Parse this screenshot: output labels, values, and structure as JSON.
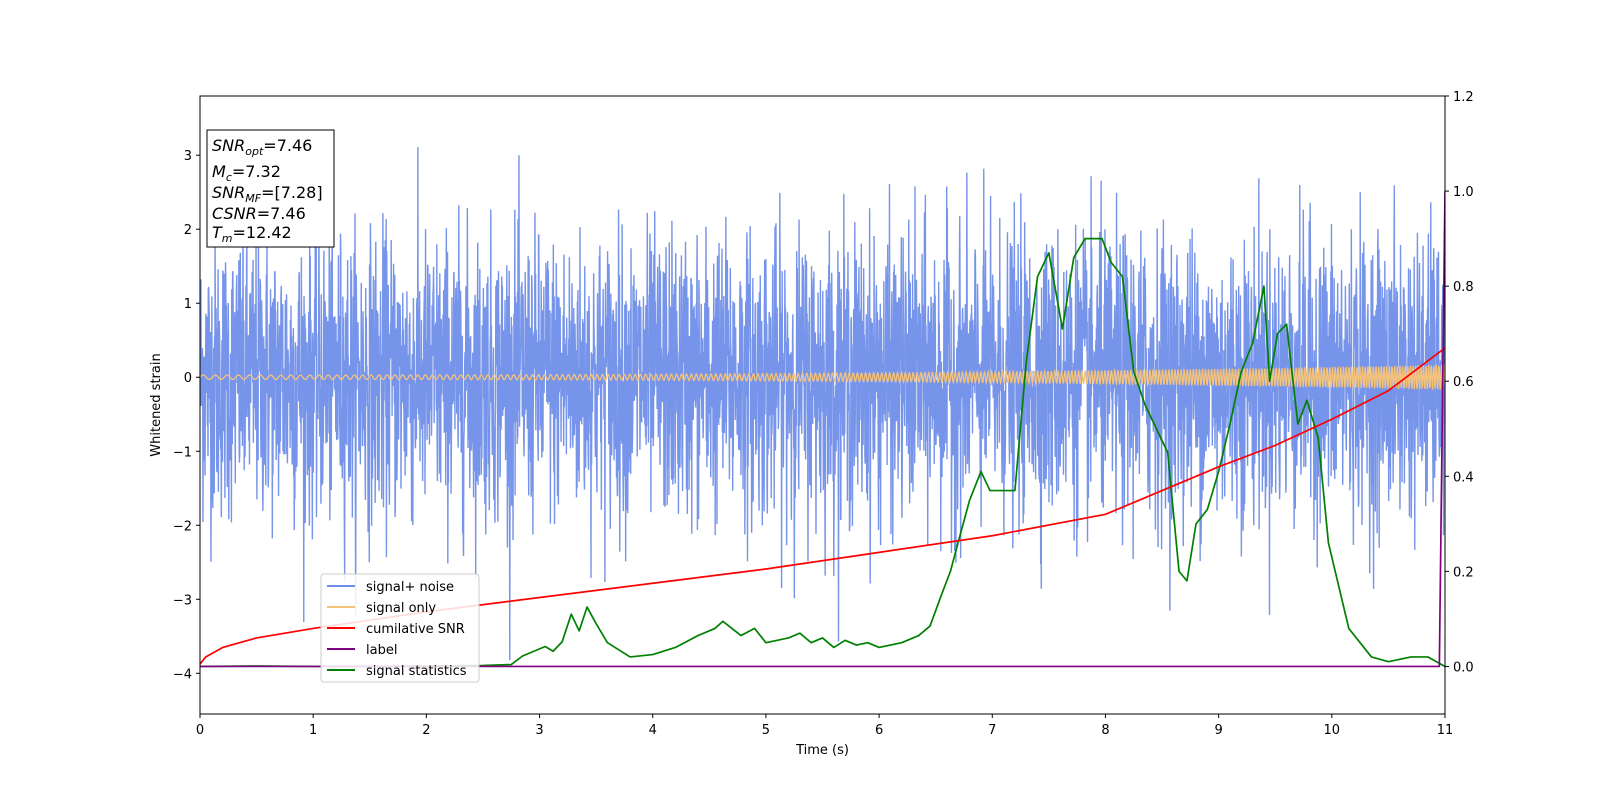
{
  "chart_data": {
    "type": "line",
    "xlabel": "Time (s)",
    "ylabel_left": "Whitened strain",
    "xlim": [
      0,
      11
    ],
    "ylim_left": [
      -4.55,
      3.8
    ],
    "ylim_right": [
      -0.1,
      1.2
    ],
    "x_ticks": [
      0,
      1,
      2,
      3,
      4,
      5,
      6,
      7,
      8,
      9,
      10,
      11
    ],
    "y_ticks_left": [
      -4,
      -3,
      -2,
      -1,
      0,
      1,
      2,
      3
    ],
    "y_ticks_right": [
      0.0,
      0.2,
      0.4,
      0.6,
      0.8,
      1.0,
      1.2
    ],
    "grid": false,
    "legend_position": "lower-left",
    "stats_box": {
      "snr_opt": {
        "base": "SNR",
        "sub": "opt",
        "value": "=7.46"
      },
      "mc": {
        "base": "M",
        "sub": "c",
        "value": "=7.32"
      },
      "snr_mf": {
        "base": "SNR",
        "sub": "MF",
        "value": "=[7.28]"
      },
      "csnr": {
        "base": "CSNR",
        "sub": "",
        "value": "=7.46"
      },
      "tm": {
        "base": "T",
        "sub": "m",
        "value": "=12.42"
      }
    },
    "series": [
      {
        "key": "noise",
        "name": "signal+ noise",
        "axis": "left",
        "color": "#6f8ee8",
        "note": "white noise around 0, approx. amplitude sigma 1.0, extremes about -4.2 to 3.45"
      },
      {
        "key": "signal",
        "name": "signal only",
        "axis": "left",
        "color": "#f5c27a",
        "amplitude_start": 0.03,
        "amplitude_end": 0.17
      },
      {
        "key": "cumsnr",
        "name": "cumilative SNR",
        "axis": "right",
        "color": "#ff0000",
        "x": [
          0,
          0.05,
          0.2,
          0.5,
          1,
          2,
          3,
          4,
          5,
          6,
          7,
          8,
          9,
          9.5,
          10,
          10.5,
          11
        ],
        "y": [
          0.005,
          0.02,
          0.04,
          0.06,
          0.08,
          0.115,
          0.145,
          0.175,
          0.205,
          0.24,
          0.275,
          0.32,
          0.42,
          0.465,
          0.52,
          0.58,
          0.67
        ]
      },
      {
        "key": "label",
        "name": "label",
        "axis": "right",
        "color": "#800080",
        "x": [
          0,
          10.95,
          11
        ],
        "y": [
          0.0,
          0.0,
          1.0
        ]
      },
      {
        "key": "stats",
        "name": "signal statistics",
        "axis": "right",
        "color": "#008000",
        "x": [
          0,
          0.5,
          1,
          1.5,
          2,
          2.5,
          2.75,
          2.85,
          2.95,
          3.05,
          3.12,
          3.2,
          3.28,
          3.35,
          3.42,
          3.5,
          3.6,
          3.7,
          3.8,
          4.0,
          4.2,
          4.4,
          4.55,
          4.62,
          4.7,
          4.78,
          4.9,
          5.0,
          5.1,
          5.2,
          5.3,
          5.4,
          5.5,
          5.6,
          5.7,
          5.8,
          5.9,
          6.0,
          6.2,
          6.35,
          6.45,
          6.55,
          6.63,
          6.72,
          6.8,
          6.9,
          6.98,
          7.1,
          7.2,
          7.3,
          7.4,
          7.5,
          7.62,
          7.72,
          7.82,
          7.97,
          8.05,
          8.15,
          8.25,
          8.35,
          8.45,
          8.55,
          8.65,
          8.72,
          8.8,
          8.9,
          9.0,
          9.1,
          9.2,
          9.3,
          9.4,
          9.45,
          9.52,
          9.6,
          9.7,
          9.78,
          9.88,
          9.97,
          10.05,
          10.15,
          10.25,
          10.35,
          10.5,
          10.7,
          10.85,
          11.0
        ],
        "y": [
          0.0,
          0.001,
          0.0,
          0.0,
          0.001,
          0.002,
          0.004,
          0.022,
          0.032,
          0.042,
          0.032,
          0.052,
          0.11,
          0.075,
          0.125,
          0.09,
          0.05,
          0.035,
          0.02,
          0.025,
          0.04,
          0.065,
          0.08,
          0.095,
          0.08,
          0.065,
          0.08,
          0.05,
          0.055,
          0.06,
          0.07,
          0.05,
          0.06,
          0.04,
          0.055,
          0.045,
          0.05,
          0.04,
          0.05,
          0.065,
          0.085,
          0.15,
          0.2,
          0.28,
          0.35,
          0.41,
          0.37,
          0.37,
          0.37,
          0.64,
          0.82,
          0.87,
          0.71,
          0.86,
          0.9,
          0.9,
          0.85,
          0.82,
          0.62,
          0.55,
          0.5,
          0.45,
          0.2,
          0.18,
          0.3,
          0.33,
          0.41,
          0.51,
          0.62,
          0.68,
          0.8,
          0.6,
          0.7,
          0.72,
          0.51,
          0.56,
          0.48,
          0.26,
          0.18,
          0.08,
          0.05,
          0.02,
          0.01,
          0.02,
          0.02,
          0.0
        ]
      }
    ]
  }
}
